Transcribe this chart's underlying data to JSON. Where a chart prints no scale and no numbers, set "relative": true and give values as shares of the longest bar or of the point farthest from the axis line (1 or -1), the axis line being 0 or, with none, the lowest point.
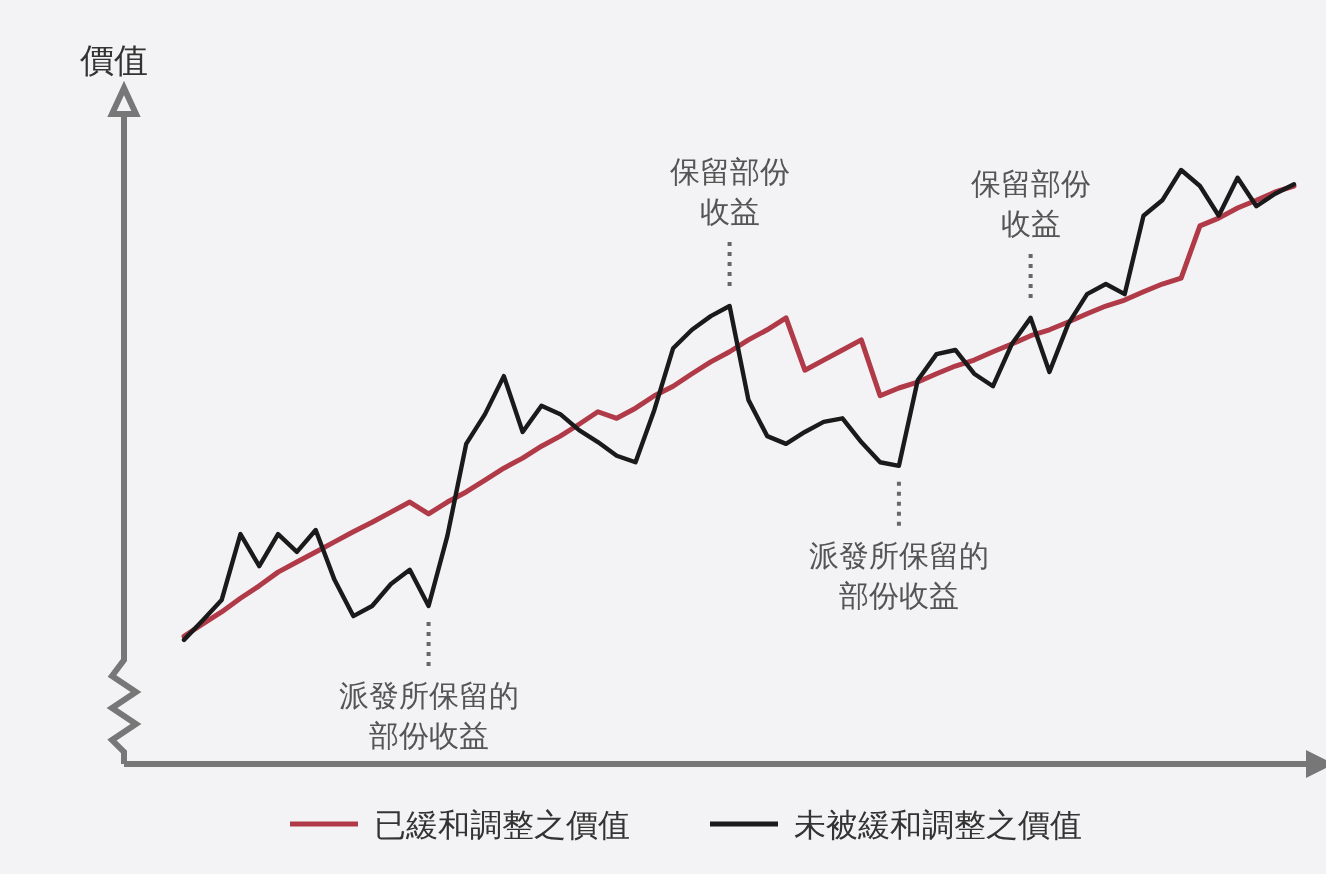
{
  "chart_data": {
    "type": "line",
    "relative": true,
    "ylabel": "價值",
    "legend": "bottom",
    "marker": "none",
    "line_style": "solid",
    "categories": [
      null,
      null,
      null,
      null,
      null,
      null,
      null,
      null,
      null,
      null,
      null,
      null,
      null,
      null,
      null,
      null,
      null,
      null,
      null,
      null,
      null,
      null,
      null,
      null,
      null,
      null,
      null,
      null,
      null,
      null,
      null,
      null,
      null,
      null,
      null,
      null,
      null,
      null,
      null,
      null,
      null,
      null,
      null,
      null,
      null,
      null,
      null,
      null,
      null,
      null,
      null,
      null,
      null,
      null,
      null,
      null,
      null,
      null,
      null,
      null
    ],
    "series": [
      {
        "name": "已緩和調整之價值",
        "color": "#b03a48",
        "values": [
          0.215,
          0.236,
          0.256,
          0.279,
          0.3,
          0.323,
          0.34,
          0.357,
          0.374,
          0.391,
          0.407,
          0.424,
          0.441,
          0.421,
          0.441,
          0.458,
          0.478,
          0.498,
          0.515,
          0.535,
          0.552,
          0.572,
          0.593,
          0.582,
          0.599,
          0.62,
          0.636,
          0.657,
          0.677,
          0.694,
          0.714,
          0.731,
          0.751,
          0.663,
          0.68,
          0.697,
          0.714,
          0.62,
          0.633,
          0.643,
          0.657,
          0.67,
          0.68,
          0.694,
          0.707,
          0.721,
          0.731,
          0.744,
          0.758,
          0.771,
          0.781,
          0.795,
          0.808,
          0.818,
          0.906,
          0.919,
          0.936,
          0.949,
          0.963,
          0.973
        ]
      },
      {
        "name": "未被緩和調整之價值",
        "color": "#1a1a1a",
        "values": [
          0.209,
          0.242,
          0.276,
          0.387,
          0.333,
          0.387,
          0.357,
          0.394,
          0.31,
          0.249,
          0.266,
          0.303,
          0.327,
          0.266,
          0.384,
          0.539,
          0.589,
          0.653,
          0.559,
          0.603,
          0.589,
          0.562,
          0.542,
          0.519,
          0.508,
          0.596,
          0.7,
          0.731,
          0.754,
          0.771,
          0.613,
          0.552,
          0.539,
          0.559,
          0.576,
          0.582,
          0.542,
          0.508,
          0.502,
          0.646,
          0.69,
          0.697,
          0.657,
          0.636,
          0.707,
          0.751,
          0.66,
          0.741,
          0.791,
          0.808,
          0.791,
          0.923,
          0.949,
          1.0,
          0.973,
          0.923,
          0.987,
          0.939,
          0.96,
          0.976
        ]
      }
    ],
    "annotations": [
      "派發所保留的部份收益",
      "保留部份收益",
      "派發所保留的部份收益",
      "保留部份收益"
    ]
  }
}
